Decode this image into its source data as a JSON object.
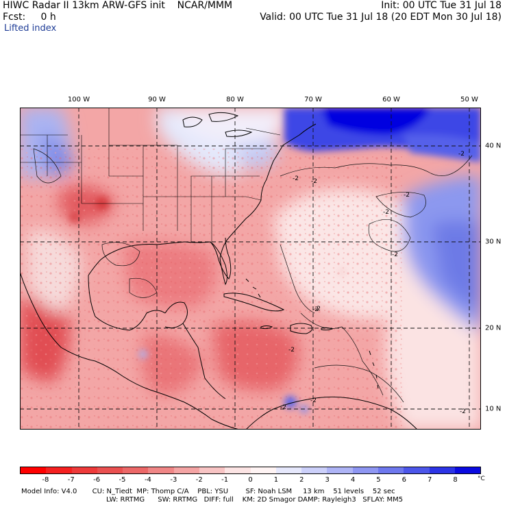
{
  "header": {
    "title": "HIWC Radar II 13km ARW-GFS init    NCAR/MMM",
    "fcst": "Fcst:     0 h",
    "field": "Lifted index",
    "init": "Init: 00 UTC Tue 31 Jul 18",
    "valid": "Valid: 00 UTC Tue 31 Jul 18 (20 EDT Mon 30 Jul 18)"
  },
  "longitude_labels": [
    "100 W",
    "90 W",
    "80 W",
    "70 W",
    "60 W",
    "50 W"
  ],
  "latitude_labels": [
    "40 N",
    "30 N",
    "20 N",
    "10 N"
  ],
  "contour_labels": [
    "-2",
    "-2",
    "-2",
    "-2",
    "-2",
    "-2",
    "-2",
    "-2",
    "-2",
    "-2",
    "-2",
    "-2"
  ],
  "colorbar": {
    "ticks": [
      "-8",
      "-7",
      "-6",
      "-5",
      "-4",
      "-3",
      "-2",
      "-1",
      "0",
      "1",
      "2",
      "3",
      "4",
      "5",
      "6",
      "7",
      "8"
    ],
    "unit": "°C",
    "colors": [
      "#ff0000",
      "#f52020",
      "#ee3a3a",
      "#ea5050",
      "#ec6868",
      "#f08686",
      "#f4a4a4",
      "#f8c4c4",
      "#fce4e4",
      "#fff4f4",
      "#e6e8fc",
      "#ccd0fa",
      "#aeb4f6",
      "#8e96f2",
      "#6e78ee",
      "#4c56ea",
      "#2c34e6",
      "#0a0ae0"
    ]
  },
  "model_info": {
    "line1": "Model Info: V4.0       CU: N_Tiedt  MP: Thomp C/A    PBL: YSU        SF: Noah LSM     13 km    51 levels    52 sec",
    "line2": "LW: RRTMG      SW: RRTMG   DIFF: full    KM: 2D Smagor DAMP: Rayleigh3   SFLAY: MM5"
  }
}
